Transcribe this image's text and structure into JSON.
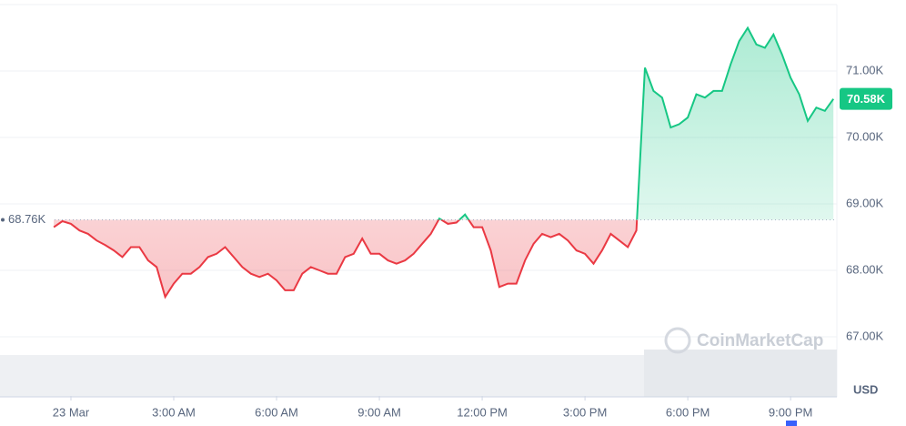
{
  "chart_data": {
    "type": "line",
    "x": [
      -0.5,
      -0.25,
      0,
      0.25,
      0.5,
      0.75,
      1,
      1.25,
      1.5,
      1.75,
      2,
      2.25,
      2.5,
      2.75,
      3,
      3.25,
      3.5,
      3.75,
      4,
      4.25,
      4.5,
      4.75,
      5,
      5.25,
      5.5,
      5.75,
      6,
      6.25,
      6.5,
      6.75,
      7,
      7.25,
      7.5,
      7.75,
      8,
      8.25,
      8.5,
      8.75,
      9,
      9.25,
      9.5,
      9.75,
      10,
      10.25,
      10.5,
      10.75,
      11,
      11.25,
      11.5,
      11.75,
      12,
      12.25,
      12.5,
      12.75,
      13,
      13.25,
      13.5,
      13.75,
      14,
      14.25,
      14.5,
      14.75,
      15,
      15.25,
      15.5,
      15.75,
      16,
      16.25,
      16.5,
      16.75,
      17,
      17.25,
      17.5,
      17.75,
      18,
      18.25,
      18.5,
      18.75,
      19,
      19.25,
      19.5,
      19.75,
      20,
      20.25,
      20.5,
      20.75,
      21,
      21.25,
      21.5,
      21.75,
      22,
      22.25
    ],
    "values": [
      68650,
      68740,
      68700,
      68600,
      68550,
      68450,
      68380,
      68300,
      68200,
      68350,
      68350,
      68150,
      68050,
      67600,
      67800,
      67950,
      67950,
      68050,
      68200,
      68250,
      68350,
      68200,
      68050,
      67950,
      67900,
      67950,
      67850,
      67700,
      67700,
      67950,
      68050,
      68000,
      67950,
      67950,
      68200,
      68250,
      68480,
      68250,
      68250,
      68150,
      68100,
      68150,
      68250,
      68400,
      68550,
      68780,
      68700,
      68720,
      68840,
      68650,
      68650,
      68300,
      67750,
      67800,
      67800,
      68150,
      68400,
      68550,
      68500,
      68550,
      68450,
      68300,
      68250,
      68100,
      68300,
      68550,
      68450,
      68350,
      68600,
      71050,
      70700,
      70600,
      70150,
      70200,
      70300,
      70650,
      70600,
      70700,
      70700,
      71100,
      71450,
      71650,
      71400,
      71350,
      71550,
      71250,
      70900,
      70650,
      70250,
      70450,
      70400,
      70580
    ],
    "up_color": "#16c784",
    "down_color": "#ea3943",
    "xlim": [
      -2.07,
      22.35
    ],
    "xticks": [
      {
        "value": 0,
        "label": "23 Mar"
      },
      {
        "value": 3,
        "label": "3:00 AM"
      },
      {
        "value": 6,
        "label": "6:00 AM"
      },
      {
        "value": 9,
        "label": "9:00 AM"
      },
      {
        "value": 12,
        "label": "12:00 PM"
      },
      {
        "value": 15,
        "label": "3:00 PM"
      },
      {
        "value": 18,
        "label": "6:00 PM"
      },
      {
        "value": 21,
        "label": "9:00 PM"
      }
    ],
    "ylim": [
      66110,
      72000
    ],
    "yticks": [
      {
        "value": 67000,
        "label": "67.00K"
      },
      {
        "value": 68000,
        "label": "68.00K"
      },
      {
        "value": 69000,
        "label": "69.00K"
      },
      {
        "value": 70000,
        "label": "70.00K"
      },
      {
        "value": 71000,
        "label": "71.00K"
      }
    ],
    "grid": true,
    "baseline": {
      "value": 68760,
      "label": "68.76K"
    },
    "last_price": {
      "value": 70580,
      "label": "70.58K"
    },
    "currency": "USD",
    "watermark": "CoinMarketCap"
  }
}
